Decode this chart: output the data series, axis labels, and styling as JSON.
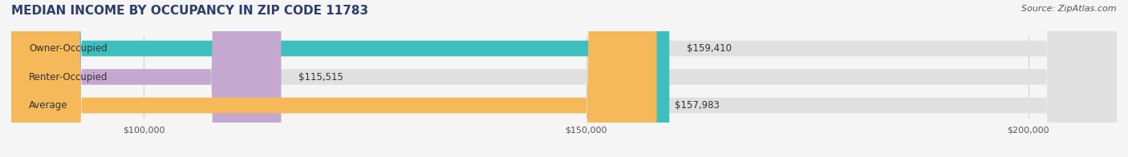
{
  "title": "MEDIAN INCOME BY OCCUPANCY IN ZIP CODE 11783",
  "source_text": "Source: ZipAtlas.com",
  "categories": [
    "Owner-Occupied",
    "Renter-Occupied",
    "Average"
  ],
  "values": [
    159410,
    115515,
    157983
  ],
  "bar_colors": [
    "#3dbfbf",
    "#c4a8d0",
    "#f5b95a"
  ],
  "bar_bg_color": "#e8e8e8",
  "value_labels": [
    "$159,410",
    "$115,515",
    "$157,983"
  ],
  "xlim": [
    85000,
    210000
  ],
  "xticks": [
    100000,
    150000,
    200000
  ],
  "xtick_labels": [
    "$100,000",
    "$150,000",
    "$200,000"
  ],
  "title_color": "#2d3e6b",
  "title_fontsize": 11,
  "source_fontsize": 8,
  "label_fontsize": 8.5,
  "value_fontsize": 8.5,
  "bar_height": 0.55,
  "background_color": "#f5f5f5"
}
